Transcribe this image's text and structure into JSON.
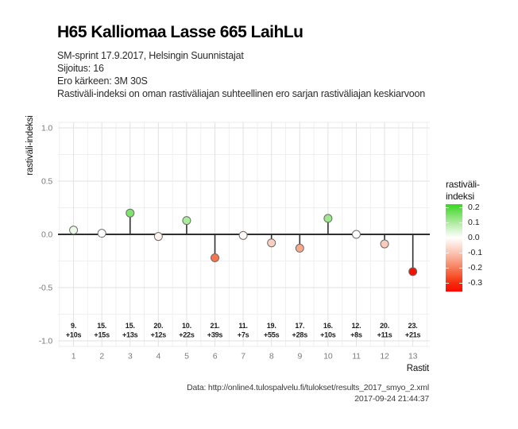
{
  "header": {
    "title": "H65 Kalliomaa Lasse 665 LaihLu",
    "subtitle_lines": [
      "SM-sprint 17.9.2017, Helsingin Suunnistajat",
      "Sijoitus: 16",
      "Ero kärkeen: 3M 30S",
      "Rastiväli-indeksi on oman rastiväliajan suhteellinen ero sarjan rastiväliajan keskiarvoon"
    ]
  },
  "chart_data": {
    "type": "scatter",
    "style": "lollipop",
    "xlabel": "Rastit",
    "ylabel": "rastiväli-indeksi",
    "x": [
      1,
      2,
      3,
      4,
      5,
      6,
      7,
      8,
      9,
      10,
      11,
      12,
      13
    ],
    "values": [
      0.04,
      0.01,
      0.2,
      -0.02,
      0.13,
      -0.22,
      -0.01,
      -0.08,
      -0.13,
      0.15,
      0.0,
      -0.09,
      -0.35
    ],
    "point_labels": [
      {
        "control": "9.",
        "diff": "+10s"
      },
      {
        "control": "15.",
        "diff": "+15s"
      },
      {
        "control": "15.",
        "diff": "+13s"
      },
      {
        "control": "20.",
        "diff": "+12s"
      },
      {
        "control": "10.",
        "diff": "+22s"
      },
      {
        "control": "21.",
        "diff": "+39s"
      },
      {
        "control": "11.",
        "diff": "+7s"
      },
      {
        "control": "19.",
        "diff": "+55s"
      },
      {
        "control": "17.",
        "diff": "+28s"
      },
      {
        "control": "16.",
        "diff": "+10s"
      },
      {
        "control": "12.",
        "diff": "+8s"
      },
      {
        "control": "20.",
        "diff": "+11s"
      },
      {
        "control": "23.",
        "diff": "+21s"
      }
    ],
    "point_fills": [
      "#ebfae7",
      "#fdfffd",
      "#7ce46a",
      "#fef3ef",
      "#a9ec99",
      "#f5764f",
      "#fffaf8",
      "#fbcfc0",
      "#f8a98c",
      "#9de98b",
      "#ffffff",
      "#facabb",
      "#f31102"
    ],
    "point_stroke": "#6b6b6b",
    "stem_color": "#2f2f2f",
    "zero_line_color": "#2f2f2f",
    "grid": "major+minor",
    "grid_major_color": "#e2e2e2",
    "grid_minor_color": "#f0f0f0",
    "tick_label_color": "#7a7a7a",
    "annotation_color": "#1d1d1d",
    "ylim": [
      -1.05,
      1.05
    ],
    "xlim": [
      0.45,
      13.6
    ],
    "yticks": [
      1.0,
      0.5,
      0.0,
      -0.5,
      -1.0
    ],
    "ytick_labels": [
      "1.0",
      "0.5",
      "0.0",
      "-0.5",
      "-1.0"
    ],
    "xticks": [
      1,
      2,
      3,
      4,
      5,
      6,
      7,
      8,
      9,
      10,
      11,
      12,
      13
    ],
    "xtick_labels": [
      "1",
      "2",
      "3",
      "4",
      "5",
      "6",
      "7",
      "8",
      "9",
      "10",
      "11",
      "12",
      "13"
    ],
    "legend": {
      "position": "right",
      "title_lines": [
        "rastiväli-",
        "indeksi"
      ],
      "ticks": [
        0.2,
        0.1,
        0.0,
        -0.1,
        -0.2,
        -0.3
      ],
      "tick_labels": [
        "0.2",
        "0.1",
        "0.0",
        "-0.1",
        "-0.2",
        "-0.3"
      ],
      "domain": [
        0.222,
        -0.358
      ],
      "gradient_stops": [
        {
          "v": 0.222,
          "c": "#3ed42a"
        },
        {
          "v": 0.2,
          "c": "#4bd938"
        },
        {
          "v": 0.15,
          "c": "#7ee36b"
        },
        {
          "v": 0.1,
          "c": "#aceb9d"
        },
        {
          "v": 0.05,
          "c": "#d8f5d0"
        },
        {
          "v": 0.0,
          "c": "#ffffff"
        },
        {
          "v": -0.05,
          "c": "#fee2d9"
        },
        {
          "v": -0.1,
          "c": "#fbc4b3"
        },
        {
          "v": -0.15,
          "c": "#f9a389"
        },
        {
          "v": -0.2,
          "c": "#f77e5d"
        },
        {
          "v": -0.25,
          "c": "#f65830"
        },
        {
          "v": -0.3,
          "c": "#f52d0d"
        },
        {
          "v": -0.358,
          "c": "#fb0800"
        }
      ]
    }
  },
  "footer": {
    "source_line": "Data: http://online4.tulospalvelu.fi/tulokset/results_2017_smyo_2.xml",
    "generated_line": "2017-09-24 21:44:37"
  }
}
